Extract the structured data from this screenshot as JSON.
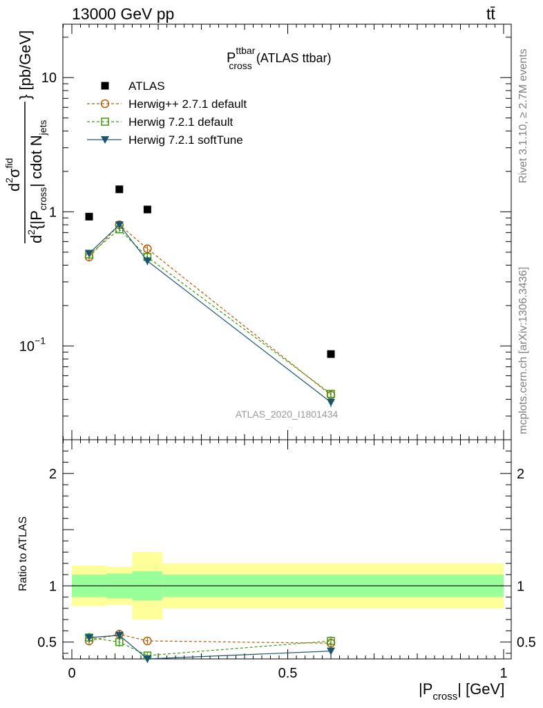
{
  "header": {
    "left": "13000 GeV pp",
    "right": "tt̄"
  },
  "plot_title": {
    "main": "P",
    "sup": "ttbar",
    "sub": "cross",
    "tail": "(ATLAS ttbar)"
  },
  "side_text": {
    "rivet": "Rivet 3.1.10, ≥ 2.7M events",
    "mcplots": "mcplots.cern.ch [arXiv:1306.3436]"
  },
  "watermark": "ATLAS_2020_I1801434",
  "ylabel_main": {
    "num_d": "d",
    "num_exp": "2",
    "num_sigma": "σ",
    "num_sigma_exp": "fid",
    "den_d": "d",
    "den_exp": "2",
    "den_body": "{|P",
    "den_sub": "cross",
    "den_tail": "| cdot N",
    "den_sub2": "jets",
    "unit": "} [pb/GeV]"
  },
  "ylabel_ratio": "Ratio to ATLAS",
  "xlabel": {
    "pre": "|P",
    "sub": "cross",
    "post": "| [GeV]"
  },
  "ticks": {
    "main_y": [
      {
        "value": 10,
        "label": "10"
      },
      {
        "value": 1,
        "label": "1"
      },
      {
        "value": 0.1,
        "label": "10",
        "sup": "−1"
      }
    ],
    "ratio_y": [
      {
        "value": 2,
        "label": "2"
      },
      {
        "value": 1,
        "label": "1"
      },
      {
        "value": 0.5,
        "label": "0.5"
      }
    ],
    "x": [
      {
        "value": 0,
        "label": "0"
      },
      {
        "value": 0.5,
        "label": "0.5"
      },
      {
        "value": 1,
        "label": "1"
      }
    ]
  },
  "colors": {
    "atlas": "#000000",
    "herwigpp": "#b35900",
    "herwig721": "#3a9b0c",
    "softtune": "#1a5570",
    "band_inner": "#99ff99",
    "band_outer": "#ffff99"
  },
  "chart_data": {
    "type": "scatter",
    "xlabel": "|P_cross| [GeV]",
    "ylabel": "d²σ^fid / d²{|P_cross| cdot N_jets} [pb/GeV]",
    "xlim": [
      0,
      1
    ],
    "ylim": [
      0.02,
      25
    ],
    "yscale": "log",
    "ratio_ylim": [
      0.35,
      2.3
    ],
    "legend_position": "top-left",
    "series": [
      {
        "name": "ATLAS",
        "style": "square-filled",
        "x": [
          0.04,
          0.11,
          0.175,
          0.6
        ],
        "values": [
          0.92,
          1.47,
          1.04,
          0.087
        ],
        "bins": [
          [
            0,
            0.08
          ],
          [
            0.08,
            0.14
          ],
          [
            0.14,
            0.21
          ],
          [
            0.21,
            1.0
          ]
        ],
        "rel_unc_inner": [
          0.1,
          0.11,
          0.13,
          0.1
        ],
        "rel_unc_outer": [
          0.18,
          0.17,
          0.3,
          0.2
        ]
      },
      {
        "name": "Herwig++ 2.7.1 default",
        "style": "circle-open-dashed",
        "x": [
          0.04,
          0.11,
          0.175,
          0.6
        ],
        "values": [
          0.46,
          0.8,
          0.53,
          0.043
        ],
        "errors": [
          0.025,
          0.03,
          0.03,
          0.003
        ],
        "ratio": [
          0.51,
          0.57,
          0.51,
          0.49
        ],
        "ratio_errors": [
          0.04,
          0.04,
          0.025,
          0.04
        ]
      },
      {
        "name": "Herwig 7.2.1 default",
        "style": "square-open-dashed",
        "x": [
          0.04,
          0.11,
          0.175,
          0.6
        ],
        "values": [
          0.48,
          0.74,
          0.46,
          0.044
        ],
        "errors": [
          0.025,
          0.035,
          0.025,
          0.003
        ],
        "ratio": [
          0.54,
          0.5,
          0.38,
          0.51
        ],
        "ratio_errors": [
          0.04,
          0.04,
          0.025,
          0.04
        ]
      },
      {
        "name": "Herwig 7.2.1 softTune",
        "style": "triangle-down-filled-solid",
        "x": [
          0.04,
          0.11,
          0.175,
          0.6
        ],
        "values": [
          0.49,
          0.8,
          0.43,
          0.038
        ],
        "errors": [
          0.025,
          0.03,
          0.03,
          0.003
        ],
        "ratio": [
          0.54,
          0.56,
          0.35,
          0.42
        ],
        "ratio_errors": [
          0.04,
          0.04,
          0.025,
          0.03
        ]
      }
    ]
  }
}
